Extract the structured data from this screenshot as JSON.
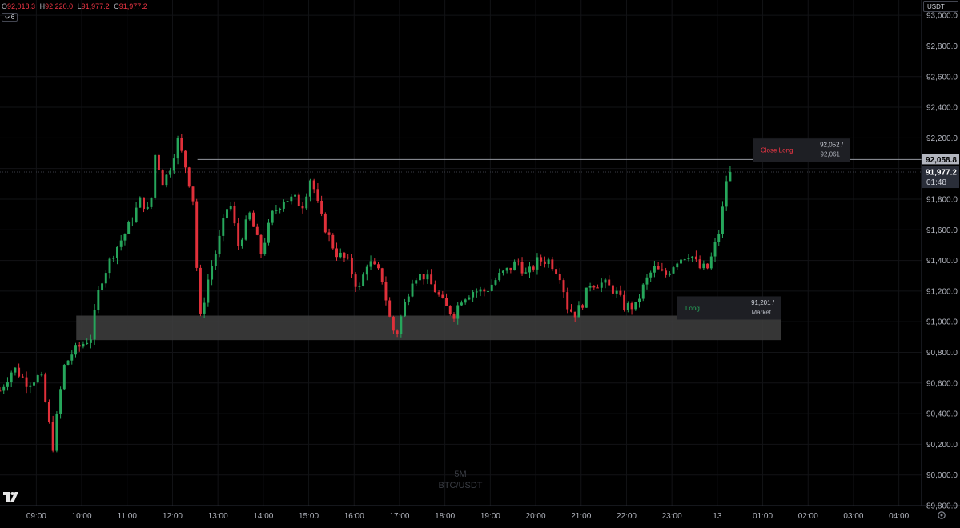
{
  "header": {
    "ohlc": [
      {
        "key": "O",
        "value": "92,018.3"
      },
      {
        "key": "H",
        "value": "92,220.0"
      },
      {
        "key": "L",
        "value": "91,977.2"
      },
      {
        "key": "C",
        "value": "91,977.2"
      }
    ],
    "indicator_count": "6",
    "currency": "USDT"
  },
  "watermark": {
    "interval": "5M",
    "symbol": "BTC/USDT"
  },
  "icons": {
    "logo": "tradingview-logo-icon",
    "settings": "gear-icon",
    "collapse": "chevron-down-icon"
  },
  "colors": {
    "up": "#26a65b",
    "down": "#e0303a",
    "background": "#000000",
    "grid": "#121316",
    "zone": "#3f3f3f"
  },
  "chart_data": {
    "type": "candlestick",
    "ylim": [
      89800,
      93100
    ],
    "y_ticks": [
      "89,800.0",
      "90,000.0",
      "90,200.0",
      "90,400.0",
      "90,600.0",
      "90,800.0",
      "91,000.0",
      "91,200.0",
      "91,400.0",
      "91,600.0",
      "91,800.0",
      "92,000.0",
      "92,200.0",
      "92,400.0",
      "92,600.0",
      "92,800.0",
      "93,000.0"
    ],
    "x_labels": [
      {
        "label": "09:00",
        "t": 9
      },
      {
        "label": "10:00",
        "t": 10
      },
      {
        "label": "11:00",
        "t": 11
      },
      {
        "label": "12:00",
        "t": 12
      },
      {
        "label": "13:00",
        "t": 13
      },
      {
        "label": "14:00",
        "t": 14
      },
      {
        "label": "15:00",
        "t": 15
      },
      {
        "label": "16:00",
        "t": 16
      },
      {
        "label": "17:00",
        "t": 17
      },
      {
        "label": "18:00",
        "t": 18
      },
      {
        "label": "19:00",
        "t": 19
      },
      {
        "label": "20:00",
        "t": 20
      },
      {
        "label": "21:00",
        "t": 21
      },
      {
        "label": "22:00",
        "t": 22
      },
      {
        "label": "23:00",
        "t": 23
      },
      {
        "label": "13",
        "t": 24
      },
      {
        "label": "01:00",
        "t": 25
      },
      {
        "label": "02:00",
        "t": 26
      },
      {
        "label": "03:00",
        "t": 27
      },
      {
        "label": "04:00",
        "t": 28
      }
    ],
    "x_range_hours": [
      8.2,
      28.5
    ],
    "price_path": [
      {
        "t": 8.2,
        "p": 90550
      },
      {
        "t": 8.5,
        "p": 90700
      },
      {
        "t": 8.8,
        "p": 90600
      },
      {
        "t": 9.1,
        "p": 90650
      },
      {
        "t": 9.3,
        "p": 90300
      },
      {
        "t": 9.35,
        "p": 90150
      },
      {
        "t": 9.6,
        "p": 90700
      },
      {
        "t": 9.8,
        "p": 90800
      },
      {
        "t": 10.0,
        "p": 90850
      },
      {
        "t": 10.2,
        "p": 90900
      },
      {
        "t": 10.4,
        "p": 91250
      },
      {
        "t": 10.7,
        "p": 91450
      },
      {
        "t": 11.0,
        "p": 91600
      },
      {
        "t": 11.3,
        "p": 91800
      },
      {
        "t": 11.5,
        "p": 91700
      },
      {
        "t": 11.62,
        "p": 92100
      },
      {
        "t": 11.8,
        "p": 91900
      },
      {
        "t": 12.0,
        "p": 92050
      },
      {
        "t": 12.1,
        "p": 92200
      },
      {
        "t": 12.3,
        "p": 92000
      },
      {
        "t": 12.45,
        "p": 91800
      },
      {
        "t": 12.6,
        "p": 91000
      },
      {
        "t": 12.8,
        "p": 91300
      },
      {
        "t": 13.0,
        "p": 91500
      },
      {
        "t": 13.25,
        "p": 91800
      },
      {
        "t": 13.45,
        "p": 91500
      },
      {
        "t": 13.7,
        "p": 91700
      },
      {
        "t": 13.95,
        "p": 91450
      },
      {
        "t": 14.2,
        "p": 91700
      },
      {
        "t": 14.45,
        "p": 91800
      },
      {
        "t": 14.7,
        "p": 91800
      },
      {
        "t": 14.85,
        "p": 91750
      },
      {
        "t": 15.05,
        "p": 91950
      },
      {
        "t": 15.25,
        "p": 91700
      },
      {
        "t": 15.45,
        "p": 91550
      },
      {
        "t": 15.6,
        "p": 91450
      },
      {
        "t": 15.85,
        "p": 91400
      },
      {
        "t": 16.1,
        "p": 91200
      },
      {
        "t": 16.3,
        "p": 91400
      },
      {
        "t": 16.6,
        "p": 91300
      },
      {
        "t": 16.8,
        "p": 91000
      },
      {
        "t": 16.92,
        "p": 90900
      },
      {
        "t": 17.05,
        "p": 91050
      },
      {
        "t": 17.3,
        "p": 91300
      },
      {
        "t": 17.55,
        "p": 91300
      },
      {
        "t": 17.8,
        "p": 91200
      },
      {
        "t": 18.0,
        "p": 91100
      },
      {
        "t": 18.2,
        "p": 91050
      },
      {
        "t": 18.35,
        "p": 91150
      },
      {
        "t": 18.6,
        "p": 91200
      },
      {
        "t": 18.9,
        "p": 91200
      },
      {
        "t": 19.2,
        "p": 91300
      },
      {
        "t": 19.45,
        "p": 91350
      },
      {
        "t": 19.6,
        "p": 91400
      },
      {
        "t": 19.8,
        "p": 91300
      },
      {
        "t": 20.05,
        "p": 91400
      },
      {
        "t": 20.3,
        "p": 91400
      },
      {
        "t": 20.55,
        "p": 91300
      },
      {
        "t": 20.7,
        "p": 91100
      },
      {
        "t": 20.85,
        "p": 91050
      },
      {
        "t": 21.0,
        "p": 91100
      },
      {
        "t": 21.2,
        "p": 91250
      },
      {
        "t": 21.5,
        "p": 91250
      },
      {
        "t": 21.75,
        "p": 91200
      },
      {
        "t": 21.95,
        "p": 91100
      },
      {
        "t": 22.2,
        "p": 91100
      },
      {
        "t": 22.4,
        "p": 91250
      },
      {
        "t": 22.6,
        "p": 91350
      },
      {
        "t": 22.85,
        "p": 91300
      },
      {
        "t": 23.1,
        "p": 91400
      },
      {
        "t": 23.4,
        "p": 91450
      },
      {
        "t": 23.6,
        "p": 91350
      },
      {
        "t": 23.8,
        "p": 91350
      },
      {
        "t": 23.95,
        "p": 91500
      },
      {
        "t": 24.05,
        "p": 91600
      },
      {
        "t": 24.15,
        "p": 91800
      },
      {
        "t": 24.25,
        "p": 92050
      },
      {
        "t": 24.35,
        "p": 91977.2
      }
    ],
    "support_zone": {
      "t_start": 9.88,
      "t_end": 25.4,
      "price_low": 90880,
      "price_high": 91040
    },
    "horizontal_line": {
      "t_start": 12.55,
      "price": 92058.8
    },
    "current_price_line": {
      "price": 91977.2
    },
    "price_labels": {
      "line_price": "92,058.8",
      "last_price": "91,977.2",
      "countdown": "01:48"
    },
    "orders": [
      {
        "side": "Close Long",
        "price": "92,052 /",
        "sub": "92,061",
        "anchor_price": 92120,
        "color": "#f23645"
      },
      {
        "side": "Long",
        "price": "91,201 /",
        "sub": "Market",
        "anchor_price": 91090,
        "color": "#26a65b"
      }
    ]
  }
}
